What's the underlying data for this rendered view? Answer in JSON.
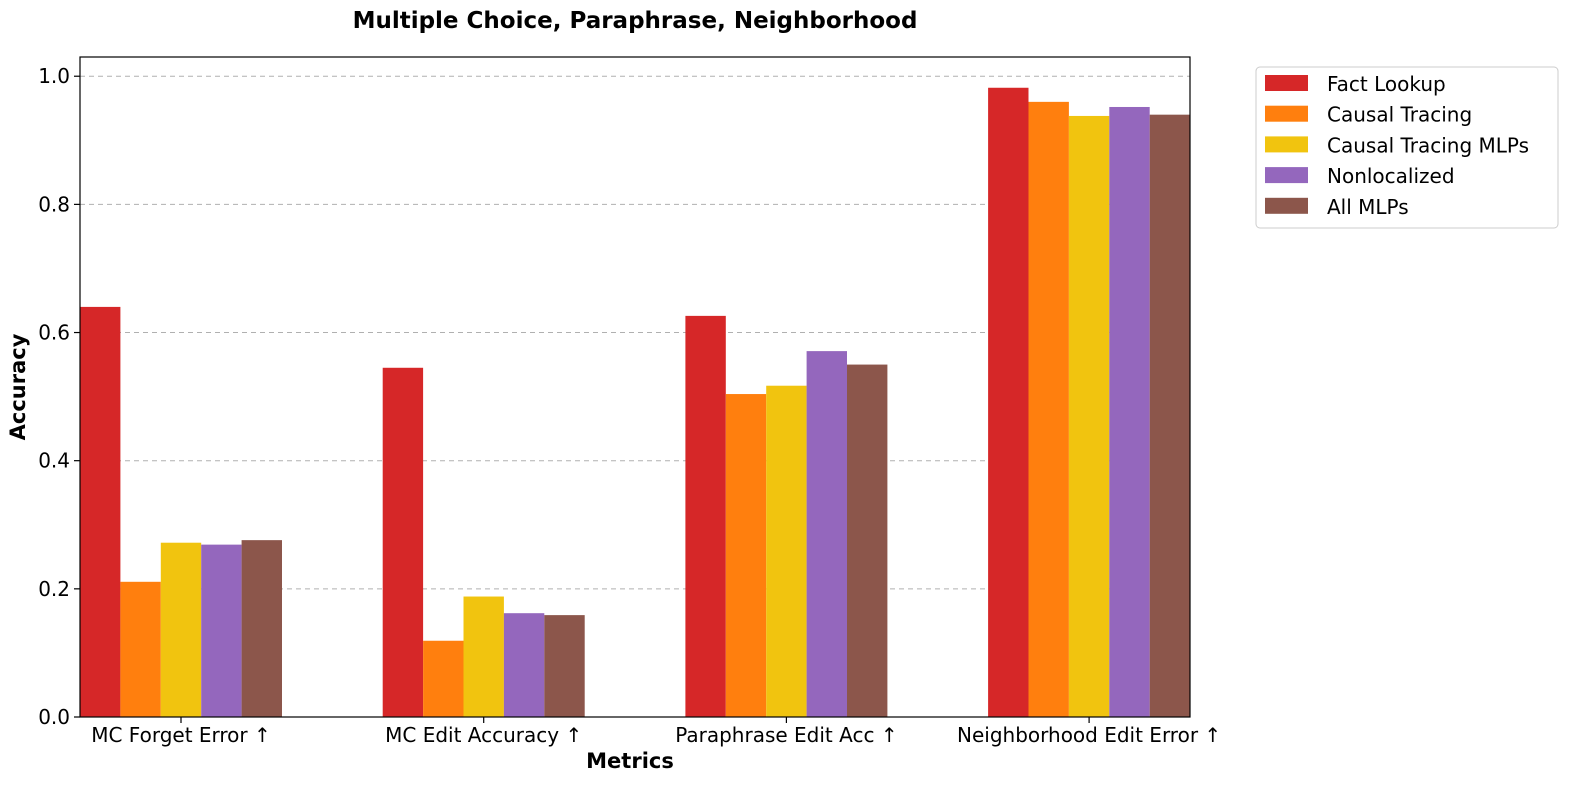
{
  "chart_data": {
    "type": "bar",
    "title": "Multiple Choice, Paraphrase, Neighborhood",
    "xlabel": "Metrics",
    "ylabel": "Accuracy",
    "ylim": [
      0,
      1.03
    ],
    "yticks": [
      "0.0",
      "0.2",
      "0.4",
      "0.6",
      "0.8",
      "1.0"
    ],
    "grid": "horizontal dashed",
    "legend_position": "outside top-right",
    "categories": [
      "MC Forget Error ↑",
      "MC Edit Accuracy ↑",
      "Paraphrase Edit Acc ↑",
      "Neighborhood Edit Error ↑"
    ],
    "series": [
      {
        "name": "Fact Lookup",
        "color": "#d62728",
        "values": [
          0.64,
          0.545,
          0.626,
          0.982
        ]
      },
      {
        "name": "Causal Tracing",
        "color": "#ff7f0e",
        "values": [
          0.211,
          0.119,
          0.504,
          0.96
        ]
      },
      {
        "name": "Causal Tracing MLPs",
        "color": "#f1c40f",
        "values": [
          0.272,
          0.188,
          0.517,
          0.938
        ]
      },
      {
        "name": "Nonlocalized",
        "color": "#9467bd",
        "values": [
          0.269,
          0.162,
          0.571,
          0.952
        ]
      },
      {
        "name": "All MLPs",
        "color": "#8c564b",
        "values": [
          0.276,
          0.159,
          0.55,
          0.94
        ]
      }
    ]
  }
}
